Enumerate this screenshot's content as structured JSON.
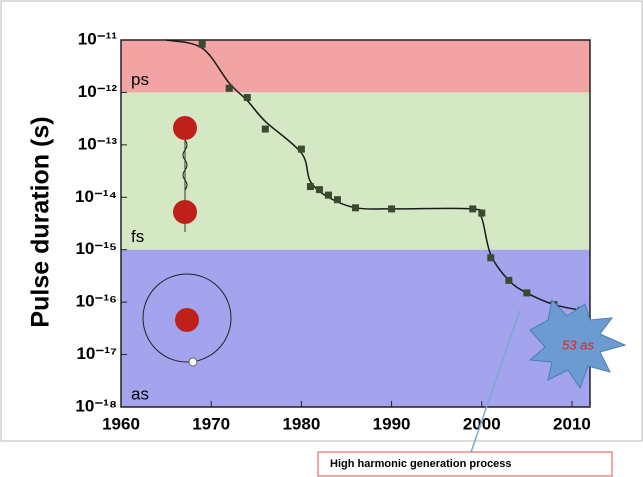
{
  "chart_data": {
    "type": "scatter",
    "y_label": "Pulse duration (s)",
    "x": [
      1969,
      1972,
      1974,
      1976,
      1980,
      1981,
      1982,
      1983,
      1984,
      1986,
      1990,
      1999,
      2000,
      2001,
      2003,
      2005,
      2008,
      2011
    ],
    "values": [
      8.3e-12,
      1.2e-12,
      8e-13,
      2e-13,
      8.3e-14,
      1.6e-14,
      1.4e-14,
      1.1e-14,
      9e-15,
      6.3e-15,
      6e-15,
      6e-15,
      5e-15,
      7e-16,
      2.6e-16,
      1.5e-16,
      9e-17,
      7e-17
    ],
    "color": "#3a4a2c",
    "line": {
      "x": [
        1965,
        1969,
        1972,
        1974,
        1976,
        1980,
        1981,
        1983,
        1986,
        1990,
        1999,
        2000,
        2001,
        2003,
        2005,
        2008,
        2011
      ],
      "values": [
        1e-11,
        7e-12,
        1.5e-12,
        7e-13,
        2.8e-13,
        7e-14,
        2e-14,
        1e-14,
        6.3e-15,
        6e-15,
        6e-15,
        4e-15,
        8e-16,
        2.6e-16,
        1.5e-16,
        9e-17,
        7e-17
      ],
      "color": "#1a1a1a"
    },
    "log_y": true,
    "xlim": [
      1960,
      2012
    ],
    "xticks": [
      1960,
      1970,
      1980,
      1990,
      2000,
      2010
    ],
    "ylim": [
      1e-18,
      1e-11
    ],
    "yticks": [
      {
        "value": 1e-18,
        "label": "10⁻¹⁸"
      },
      {
        "value": 1e-17,
        "label": "10⁻¹⁷"
      },
      {
        "value": 1e-16,
        "label": "10⁻¹⁶"
      },
      {
        "value": 1e-15,
        "label": "10⁻¹⁵"
      },
      {
        "value": 1e-14,
        "label": "10⁻¹⁴"
      },
      {
        "value": 1e-13,
        "label": "10⁻¹³"
      },
      {
        "value": 1e-12,
        "label": "10⁻¹²"
      },
      {
        "value": 1e-11,
        "label": "10⁻¹¹"
      }
    ],
    "bands": [
      {
        "label": "ps",
        "from": 1e-12,
        "to": 1e-11,
        "color": "#f2a3a3"
      },
      {
        "label": "fs",
        "from": 1e-15,
        "to": 1e-12,
        "color": "#d5e8c4"
      },
      {
        "label": "as",
        "from": 1e-18,
        "to": 1e-15,
        "color": "#a4a4ee"
      }
    ],
    "annotations": [
      "53 as",
      "High harmonic generation process"
    ]
  }
}
